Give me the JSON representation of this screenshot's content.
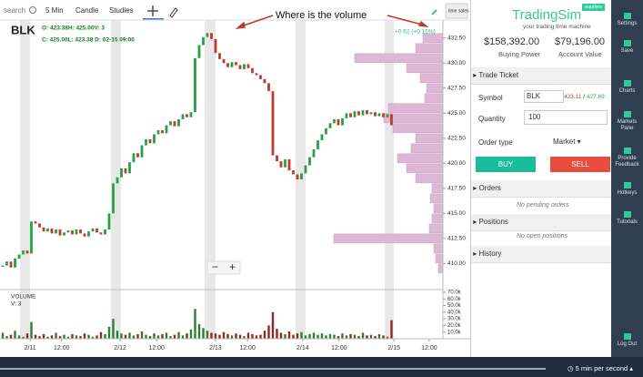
{
  "toolbar": {
    "search": "search",
    "interval": "5 Min",
    "style": "Candle",
    "studies": "Studies"
  },
  "chart_data": {
    "type": "candlestick",
    "symbol": "BLK",
    "ohlc_line1": "O: 423.38H: 425.00V: 3",
    "ohlc_line2": "C: 425.00L: 423.38 D: 02-15 09:00",
    "annotation": "Where is the volume",
    "change": "+0.62 (+0.15%)",
    "time_sales": "time sales",
    "closes": [
      409.8,
      410.2,
      409.6,
      410.5,
      410.9,
      411.3,
      411.0,
      414.2,
      414.0,
      413.6,
      413.2,
      413.5,
      413.0,
      413.4,
      412.8,
      413.1,
      413.3,
      412.9,
      413.4,
      413.0,
      412.7,
      413.2,
      413.5,
      413.1,
      412.9,
      413.4,
      415.0,
      418.0,
      418.6,
      419.5,
      419.0,
      420.1,
      421.0,
      420.6,
      421.8,
      422.4,
      422.0,
      422.9,
      423.3,
      423.0,
      423.8,
      424.2,
      423.7,
      424.4,
      424.9,
      424.6,
      425.1,
      430.5,
      431.8,
      432.6,
      433.0,
      432.4,
      431.0,
      430.4,
      430.0,
      429.6,
      430.1,
      429.8,
      429.4,
      429.9,
      429.5,
      429.0,
      428.8,
      428.4,
      428.0,
      427.2,
      420.8,
      420.2,
      419.6,
      420.4,
      419.3,
      418.9,
      418.4,
      419.0,
      419.8,
      420.6,
      421.4,
      422.3,
      422.9,
      423.5,
      424.0,
      424.4,
      423.8,
      424.5,
      425.0,
      424.6,
      425.2,
      424.8,
      425.3,
      424.9,
      425.1,
      424.7,
      425.0,
      424.6,
      424.9,
      423.8
    ],
    "ylim": [
      407.4,
      434.3
    ],
    "yticks": [
      {
        "value": 432.5,
        "label": "432.50"
      },
      {
        "value": 430,
        "label": "430.00"
      },
      {
        "value": 427.5,
        "label": "427.50"
      },
      {
        "value": 425,
        "label": "425.00"
      },
      {
        "value": 422.5,
        "label": "422.50"
      },
      {
        "value": 420,
        "label": "420.00"
      },
      {
        "value": 417.5,
        "label": "417.50"
      },
      {
        "value": 415,
        "label": "415.00"
      },
      {
        "value": 412.5,
        "label": "412.50"
      },
      {
        "value": 410,
        "label": "410.00"
      }
    ],
    "xlim": [
      -0.67,
      107.56
    ],
    "xticks": [
      {
        "value": 6.7,
        "label": "2/11"
      },
      {
        "value": 14.4,
        "label": "12:00"
      },
      {
        "value": 28.7,
        "label": "2/12"
      },
      {
        "value": 37.6,
        "label": "12:00"
      },
      {
        "value": 52,
        "label": "2/13"
      },
      {
        "value": 59.8,
        "label": "12:00"
      },
      {
        "value": 73.3,
        "label": "2/14"
      },
      {
        "value": 82.2,
        "label": "12:00"
      },
      {
        "value": 95.6,
        "label": "2/15"
      },
      {
        "value": 104.2,
        "label": "12:00"
      }
    ],
    "volume_profile": {
      "prices": [
        409.5,
        410.5,
        411.5,
        412.5,
        413.5,
        414.5,
        415.5,
        416.5,
        417.5,
        418.5,
        419.5,
        420.5,
        421.5,
        422.5,
        423.5,
        424.5,
        425.5,
        426.5,
        427.5,
        428.5,
        429.5,
        430.5,
        431.5,
        432.5
      ],
      "values": [
        5,
        8,
        10,
        120,
        15,
        12,
        10,
        14,
        12,
        30,
        40,
        50,
        35,
        30,
        55,
        65,
        60,
        20,
        18,
        25,
        40,
        97,
        30,
        22
      ]
    },
    "volume": {
      "title": "VOLUME",
      "last": "V: 3",
      "values": [
        9000,
        4000,
        6000,
        12000,
        5000,
        3000,
        8000,
        25000,
        6000,
        4000,
        7000,
        3000,
        5000,
        9000,
        4000,
        6000,
        3000,
        7000,
        5000,
        4000,
        8000,
        6000,
        3000,
        5000,
        10000,
        7000,
        18000,
        30000,
        12000,
        8000,
        6000,
        9000,
        5000,
        7000,
        11000,
        6000,
        4000,
        8000,
        5000,
        7000,
        9000,
        4000,
        6000,
        10000,
        5000,
        8000,
        14000,
        45000,
        22000,
        16000,
        12000,
        9000,
        8000,
        6000,
        10000,
        7000,
        5000,
        8000,
        6000,
        4000,
        9000,
        7000,
        5000,
        6000,
        12000,
        20000,
        40000,
        15000,
        9000,
        7000,
        11000,
        6000,
        8000,
        10000,
        5000,
        7000,
        9000,
        6000,
        8000,
        5000,
        7000,
        6000,
        4000,
        8000,
        5000,
        7000,
        6000,
        4000,
        9000,
        5000,
        6000,
        4000,
        7000,
        5000,
        3000,
        28000
      ],
      "ylim": [
        0,
        74000
      ],
      "yticks": [
        {
          "value": 70000,
          "label": "70.0k"
        },
        {
          "value": 60000,
          "label": "60.0k"
        },
        {
          "value": 50000,
          "label": "50.0k"
        },
        {
          "value": 40000,
          "label": "40.0k"
        },
        {
          "value": 30000,
          "label": "30.0k"
        },
        {
          "value": 20000,
          "label": "20.0k"
        },
        {
          "value": 10000,
          "label": "10.0k"
        }
      ]
    },
    "zoom_out": "−",
    "zoom_in": "+"
  },
  "panel": {
    "brand": "TradingSim",
    "tagline": "your trading time machine",
    "badge": "equities",
    "buying_power": "$158,392.00",
    "buying_power_label": "Buying Power",
    "account_value": "$79,196.00",
    "account_value_label": "Account Value",
    "trade_ticket": "Trade Ticket",
    "symbol_label": "Symbol",
    "symbol": "BLK",
    "bid": "423.11",
    "ask": "427.69",
    "quantity_label": "Quantity",
    "quantity": "100",
    "order_type_label": "Order type",
    "order_type": "Market ▾",
    "buy": "BUY",
    "sell": "SELL",
    "orders": "Orders",
    "no_orders": "No pending orders",
    "positions": "Positions",
    "no_positions": "No open positions",
    "history": "History"
  },
  "sidebar": [
    "Settings",
    "Save",
    "Charts",
    "Markets Pane",
    "Provide Feedback",
    "Hotkeys",
    "Tutorials",
    "Log Out"
  ],
  "footer": {
    "speed": "5 min per second"
  }
}
